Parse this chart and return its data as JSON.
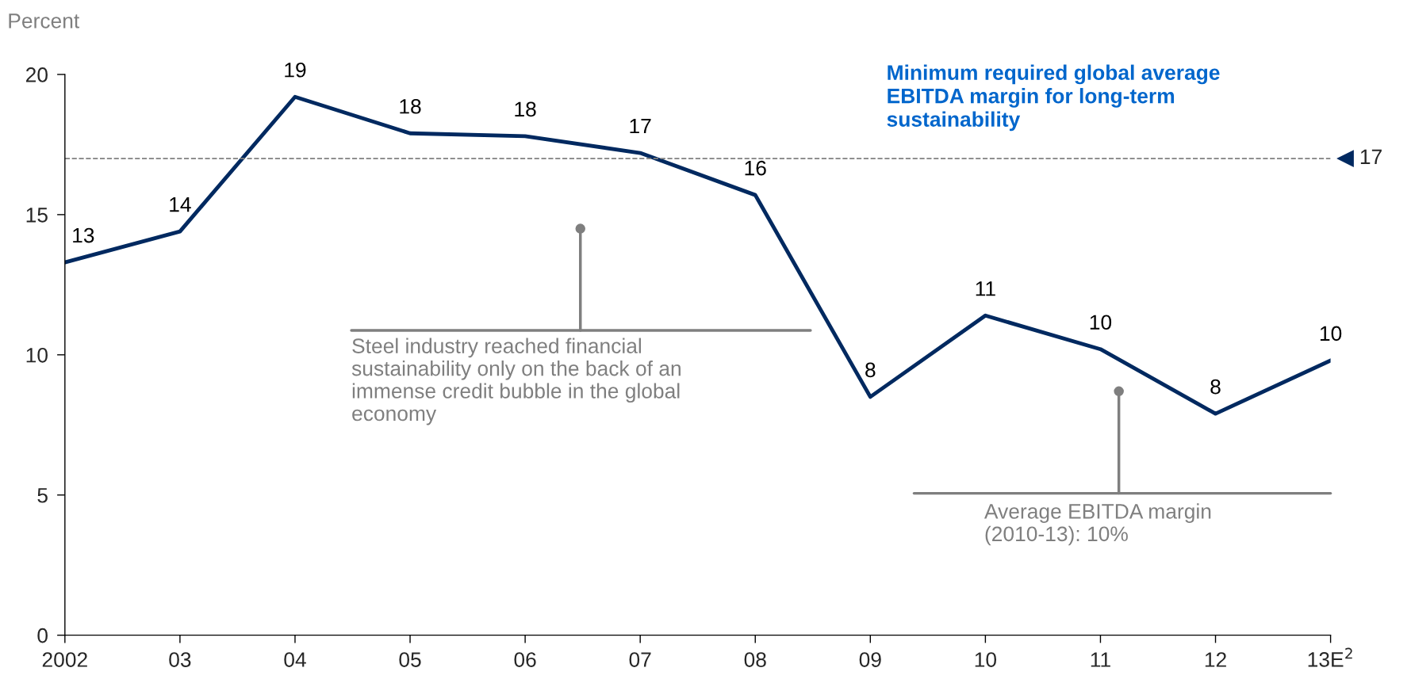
{
  "chart_data": {
    "type": "line",
    "ylabel": "Percent",
    "categories": [
      "2002",
      "03",
      "04",
      "05",
      "06",
      "07",
      "08",
      "09",
      "10",
      "11",
      "12",
      "13E$^{2}$"
    ],
    "series": [
      {
        "color": "#002960",
        "values": [
          13.3,
          14.4,
          19.2,
          17.9,
          17.8,
          17.2,
          15.7,
          8.5,
          11.4,
          10.2,
          7.9,
          9.8
        ],
        "value_labels": [
          "13",
          "14",
          "19",
          "18",
          "18",
          "17",
          "16",
          "8",
          "11",
          "10",
          "8",
          "10"
        ]
      }
    ],
    "ylim": [
      0,
      20
    ],
    "yticks": [
      0,
      5,
      10,
      15,
      20
    ],
    "ref_lines": [
      {
        "axis": "y",
        "value": 17,
        "label": "Minimum required global average\nEBITDA margin for long-term\nsustainability",
        "color": "#808080",
        "line_style": "dashed"
      }
    ],
    "annotations": [
      {
        "text": "17",
        "x": "13E$^{2}$",
        "y": 17
      },
      "Steel industry reached financial\nsustainability only on the back of an\nimmense credit bubble in the global\neconomy",
      "Average EBITDA margin\n(2010-13): 10%"
    ],
    "grid": false,
    "marker": "none",
    "line_style": "solid"
  }
}
